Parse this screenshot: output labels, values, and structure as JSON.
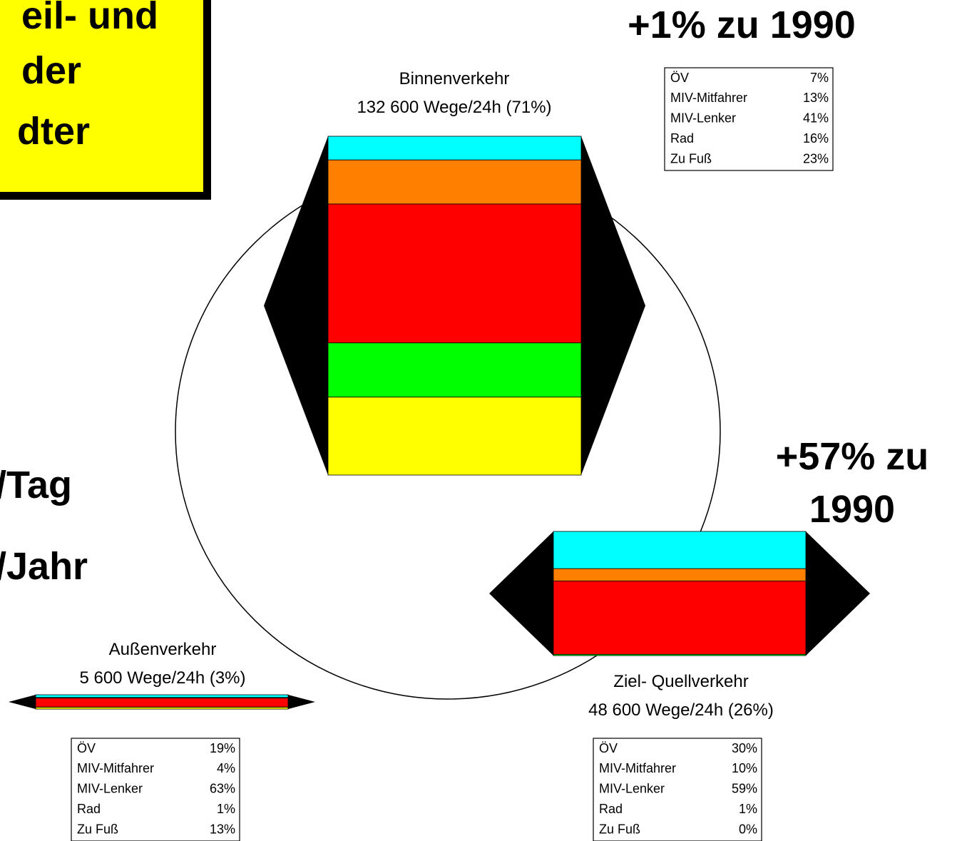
{
  "header": {
    "box_lines": [
      "eil- und",
      "der",
      "dter"
    ],
    "left_lines": [
      "/Tag",
      "/Jahr"
    ]
  },
  "colors": [
    "#00ffff",
    "#ff8000",
    "#ff0000",
    "#00ff00",
    "#ffff00"
  ],
  "blocks": [
    {
      "title": "Binnenverkehr",
      "subtitle": "132 600 Wege/24h (71%)",
      "trips": 132600,
      "change": [
        "+1% zu 1990"
      ],
      "modes": [
        "ÖV",
        "MIV-Mitfahrer",
        "MIV-Lenker",
        "Rad",
        "Zu Fuß"
      ],
      "values": [
        7,
        13,
        41,
        16,
        23
      ],
      "value_labels": [
        "7%",
        "13%",
        "41%",
        "16%",
        "23%"
      ]
    },
    {
      "title": "Ziel- Quellverkehr",
      "subtitle": "48 600 Wege/24h (26%)",
      "trips": 48600,
      "change": [
        "+57% zu",
        "1990"
      ],
      "modes": [
        "ÖV",
        "MIV-Mitfahrer",
        "MIV-Lenker",
        "Rad",
        "Zu Fuß"
      ],
      "values": [
        30,
        10,
        59,
        1,
        0
      ],
      "value_labels": [
        "30%",
        "10%",
        "59%",
        "1%",
        "0%"
      ]
    },
    {
      "title": "Außenverkehr",
      "subtitle": "5 600 Wege/24h (3%)",
      "trips": 5600,
      "modes": [
        "ÖV",
        "MIV-Mitfahrer",
        "MIV-Lenker",
        "Rad",
        "Zu Fuß"
      ],
      "values": [
        19,
        4,
        63,
        1,
        13
      ],
      "value_labels": [
        "19%",
        "4%",
        "63%",
        "1%",
        "13%"
      ]
    }
  ]
}
